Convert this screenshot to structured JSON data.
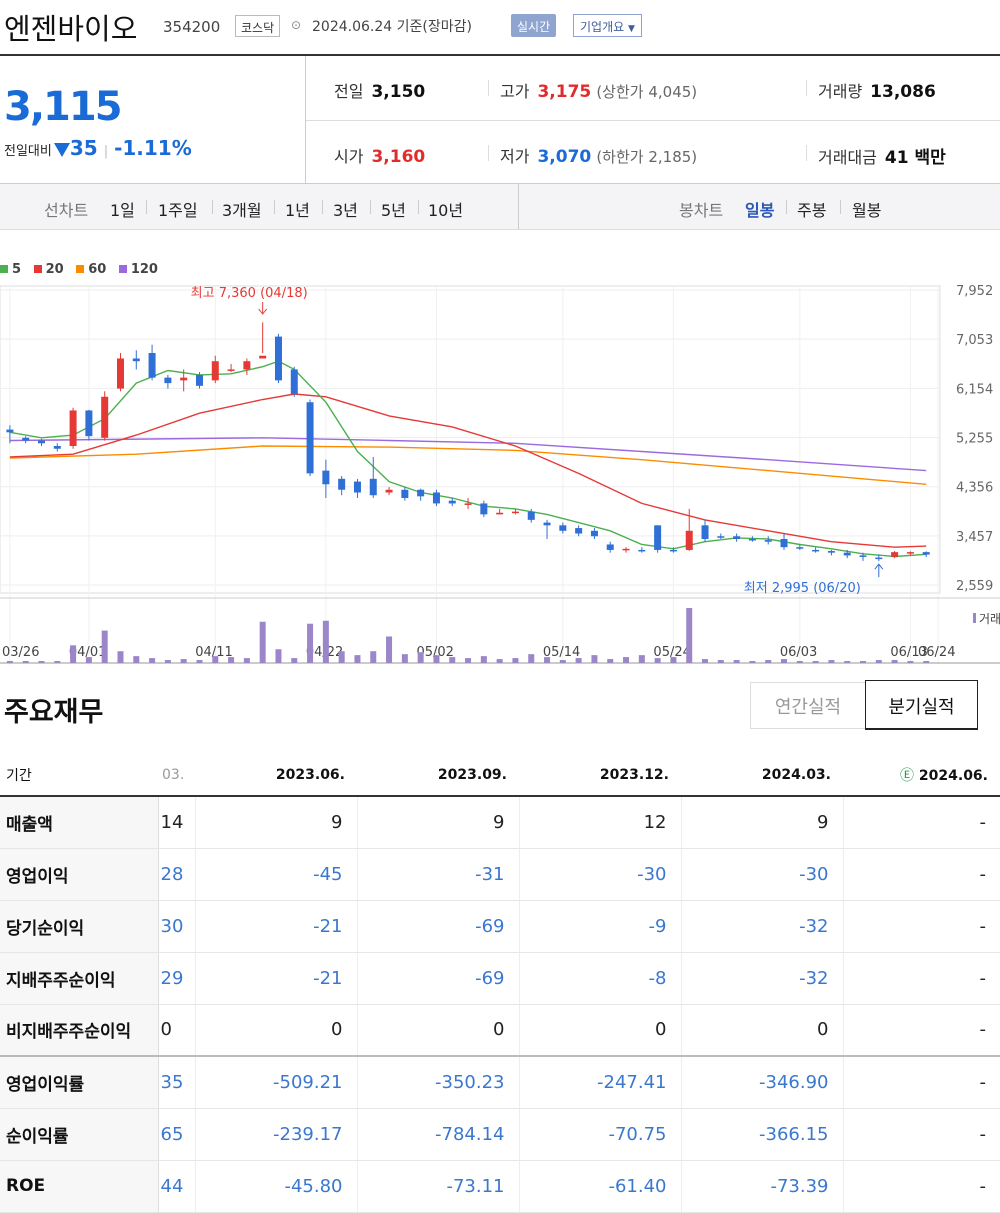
{
  "header": {
    "name": "엔젠바이오",
    "code": "354200",
    "market": "코스닥",
    "date": "2024.06.24 기준(장마감)",
    "realtime": "실시간",
    "company_info": "기업개요"
  },
  "quote": {
    "price": "3,115",
    "change_label": "전일대비",
    "change_value": "35",
    "change_pct": "-1.11%",
    "prev_label": "전일",
    "prev": "3,150",
    "open_label": "시가",
    "open": "3,160",
    "high_label": "고가",
    "high": "3,175",
    "upper_limit": "(상한가 4,045)",
    "low_label": "저가",
    "low": "3,070",
    "lower_limit": "(하한가 2,185)",
    "volume_label": "거래량",
    "volume": "13,086",
    "amount_label": "거래대금",
    "amount": "41 백만"
  },
  "periods": {
    "line_label": "선차트",
    "line_items": [
      "1일",
      "1주일",
      "3개월",
      "1년",
      "3년",
      "5년",
      "10년"
    ],
    "candle_label": "봉차트",
    "candle_items": [
      "일봉",
      "주봉",
      "월봉"
    ],
    "active_candle": "일봉"
  },
  "legend": [
    {
      "label": "5",
      "color": "#4caf50"
    },
    {
      "label": "20",
      "color": "#e53935"
    },
    {
      "label": "60",
      "color": "#fb8c00"
    },
    {
      "label": "120",
      "color": "#9c6ade"
    }
  ],
  "chart_data": {
    "type": "candlestick",
    "y_ticks": [
      7952,
      7053,
      6154,
      5255,
      4356,
      3457,
      2559
    ],
    "x_labels": [
      "03/26",
      "04/01",
      "04/11",
      "04/22",
      "05/02",
      "05/14",
      "05/24",
      "06/03",
      "06/13",
      "06/24"
    ],
    "max_annotation": "최고 7,360 (04/18)",
    "min_annotation": "최저 2,995 (06/20)",
    "volume_label": "거래",
    "candles": [
      [
        5400,
        5350,
        5480,
        5150,
        "u"
      ],
      [
        5250,
        5200,
        5280,
        5150,
        "u"
      ],
      [
        5200,
        5150,
        5230,
        5100,
        "u"
      ],
      [
        5100,
        5050,
        5150,
        5000,
        "u"
      ],
      [
        5100,
        5750,
        5800,
        5050,
        "d"
      ],
      [
        5750,
        5280,
        5760,
        5200,
        "u"
      ],
      [
        5250,
        6000,
        6100,
        5200,
        "d"
      ],
      [
        6150,
        6700,
        6800,
        6100,
        "d"
      ],
      [
        6700,
        6650,
        6850,
        6500,
        "u"
      ],
      [
        6800,
        6350,
        6950,
        6300,
        "u"
      ],
      [
        6350,
        6250,
        6400,
        6150,
        "u"
      ],
      [
        6300,
        6350,
        6500,
        6100,
        "d"
      ],
      [
        6400,
        6200,
        6450,
        6150,
        "u"
      ],
      [
        6300,
        6650,
        6750,
        6250,
        "d"
      ],
      [
        6500,
        6500,
        6600,
        6450,
        "d"
      ],
      [
        6500,
        6650,
        6700,
        6400,
        "d"
      ],
      [
        6700,
        6750,
        7360,
        6800,
        "d"
      ],
      [
        7100,
        6300,
        7150,
        6250,
        "u"
      ],
      [
        6500,
        6050,
        6550,
        6000,
        "u"
      ],
      [
        5900,
        4600,
        5950,
        4550,
        "u"
      ],
      [
        4650,
        4400,
        4850,
        4150,
        "u"
      ],
      [
        4500,
        4300,
        4550,
        4200,
        "u"
      ],
      [
        4450,
        4250,
        4500,
        4150,
        "u"
      ],
      [
        4500,
        4200,
        4900,
        4150,
        "u"
      ],
      [
        4250,
        4300,
        4350,
        4200,
        "d"
      ],
      [
        4300,
        4150,
        4350,
        4100,
        "u"
      ],
      [
        4300,
        4180,
        4320,
        4100,
        "u"
      ],
      [
        4250,
        4050,
        4300,
        4000,
        "u"
      ],
      [
        4100,
        4050,
        4150,
        4000,
        "u"
      ],
      [
        4050,
        4050,
        4150,
        3950,
        "d"
      ],
      [
        4050,
        3850,
        4100,
        3800,
        "u"
      ],
      [
        3850,
        3880,
        3950,
        3850,
        "d"
      ],
      [
        3880,
        3900,
        3950,
        3850,
        "d"
      ],
      [
        3900,
        3750,
        3950,
        3700,
        "u"
      ],
      [
        3700,
        3650,
        3750,
        3400,
        "u"
      ],
      [
        3650,
        3550,
        3700,
        3500,
        "u"
      ],
      [
        3600,
        3500,
        3650,
        3450,
        "u"
      ],
      [
        3550,
        3450,
        3600,
        3400,
        "u"
      ],
      [
        3300,
        3200,
        3350,
        3150,
        "u"
      ],
      [
        3200,
        3220,
        3250,
        3150,
        "d"
      ],
      [
        3200,
        3200,
        3250,
        3150,
        "u"
      ],
      [
        3650,
        3200,
        3650,
        3150,
        "u"
      ],
      [
        3200,
        3200,
        3250,
        3150,
        "u"
      ],
      [
        3200,
        3550,
        3950,
        3180,
        "d"
      ],
      [
        3650,
        3400,
        3750,
        3350,
        "u"
      ],
      [
        3450,
        3450,
        3500,
        3400,
        "u"
      ],
      [
        3450,
        3400,
        3500,
        3350,
        "u"
      ],
      [
        3400,
        3400,
        3450,
        3350,
        "u"
      ],
      [
        3380,
        3350,
        3450,
        3300,
        "u"
      ],
      [
        3400,
        3250,
        3500,
        3200,
        "u"
      ],
      [
        3250,
        3230,
        3300,
        3200,
        "u"
      ],
      [
        3200,
        3180,
        3250,
        3150,
        "u"
      ],
      [
        3180,
        3150,
        3200,
        3100,
        "u"
      ],
      [
        3150,
        3100,
        3200,
        3050,
        "u"
      ],
      [
        3100,
        3080,
        3150,
        3000,
        "u"
      ],
      [
        3060,
        3060,
        3120,
        2995,
        "u"
      ],
      [
        3070,
        3160,
        3180,
        3050,
        "d"
      ],
      [
        3160,
        3150,
        3175,
        3100,
        "d"
      ],
      [
        3160,
        3115,
        3175,
        3070,
        "u"
      ]
    ],
    "volume": [
      2,
      2,
      2,
      2,
      18,
      6,
      33,
      12,
      7,
      5,
      3,
      4,
      3,
      7,
      6,
      5,
      42,
      14,
      5,
      40,
      43,
      12,
      8,
      12,
      27,
      9,
      11,
      8,
      6,
      5,
      7,
      4,
      5,
      9,
      6,
      3,
      5,
      8,
      4,
      6,
      8,
      5,
      6,
      56,
      4,
      3,
      3,
      2,
      3,
      4,
      2,
      2,
      3,
      2,
      2,
      3,
      3,
      2,
      2
    ],
    "ma5": [
      [
        0,
        5350
      ],
      [
        2,
        5250
      ],
      [
        4,
        5300
      ],
      [
        6,
        5600
      ],
      [
        8,
        6250
      ],
      [
        10,
        6480
      ],
      [
        12,
        6400
      ],
      [
        14,
        6420
      ],
      [
        16,
        6550
      ],
      [
        17,
        6650
      ],
      [
        18,
        6500
      ],
      [
        20,
        5900
      ],
      [
        22,
        5000
      ],
      [
        24,
        4450
      ],
      [
        26,
        4250
      ],
      [
        28,
        4150
      ],
      [
        30,
        4000
      ],
      [
        32,
        3950
      ],
      [
        34,
        3850
      ],
      [
        36,
        3700
      ],
      [
        38,
        3550
      ],
      [
        40,
        3300
      ],
      [
        42,
        3220
      ],
      [
        44,
        3350
      ],
      [
        46,
        3420
      ],
      [
        48,
        3400
      ],
      [
        50,
        3300
      ],
      [
        52,
        3220
      ],
      [
        54,
        3130
      ],
      [
        56,
        3080
      ],
      [
        58,
        3120
      ]
    ],
    "ma20": [
      [
        0,
        4900
      ],
      [
        4,
        4950
      ],
      [
        8,
        5300
      ],
      [
        12,
        5700
      ],
      [
        16,
        5950
      ],
      [
        18,
        6050
      ],
      [
        20,
        6000
      ],
      [
        24,
        5650
      ],
      [
        28,
        5450
      ],
      [
        32,
        5100
      ],
      [
        36,
        4600
      ],
      [
        40,
        4050
      ],
      [
        44,
        3750
      ],
      [
        48,
        3550
      ],
      [
        52,
        3350
      ],
      [
        56,
        3250
      ],
      [
        58,
        3270
      ]
    ],
    "ma60": [
      [
        0,
        4880
      ],
      [
        8,
        4950
      ],
      [
        16,
        5100
      ],
      [
        24,
        5080
      ],
      [
        32,
        5020
      ],
      [
        40,
        4850
      ],
      [
        48,
        4650
      ],
      [
        58,
        4400
      ]
    ],
    "ma120": [
      [
        0,
        5200
      ],
      [
        16,
        5250
      ],
      [
        24,
        5200
      ],
      [
        32,
        5150
      ],
      [
        40,
        5000
      ],
      [
        48,
        4850
      ],
      [
        58,
        4650
      ]
    ]
  },
  "financials": {
    "title": "주요재무",
    "tab_annual": "연간실적",
    "tab_quarter": "분기실적",
    "period_label": "기간",
    "cut_header": "03.",
    "periods": [
      "2023.06.",
      "2023.09.",
      "2023.12.",
      "2024.03.",
      "2024.06."
    ],
    "estimate_mark": "Ⓔ",
    "rows": [
      {
        "label": "매출액",
        "cut": "14",
        "values": [
          "9",
          "9",
          "12",
          "9",
          "-"
        ]
      },
      {
        "label": "영업이익",
        "cut": "28",
        "values": [
          "-45",
          "-31",
          "-30",
          "-30",
          "-"
        ]
      },
      {
        "label": "당기순이익",
        "cut": "30",
        "values": [
          "-21",
          "-69",
          "-9",
          "-32",
          "-"
        ]
      },
      {
        "label": "지배주주순이익",
        "cut": "29",
        "values": [
          "-21",
          "-69",
          "-8",
          "-32",
          "-"
        ]
      },
      {
        "label": "비지배주주순이익",
        "cut": "0",
        "values": [
          "0",
          "0",
          "0",
          "0",
          "-"
        ]
      },
      {
        "label": "영업이익률",
        "cut": "35",
        "values": [
          "-509.21",
          "-350.23",
          "-247.41",
          "-346.90",
          "-"
        ]
      },
      {
        "label": "순이익률",
        "cut": "65",
        "values": [
          "-239.17",
          "-784.14",
          "-70.75",
          "-366.15",
          "-"
        ]
      },
      {
        "label": "ROE",
        "cut": "44",
        "values": [
          "-45.80",
          "-73.11",
          "-61.40",
          "-73.39",
          "-"
        ]
      }
    ]
  }
}
